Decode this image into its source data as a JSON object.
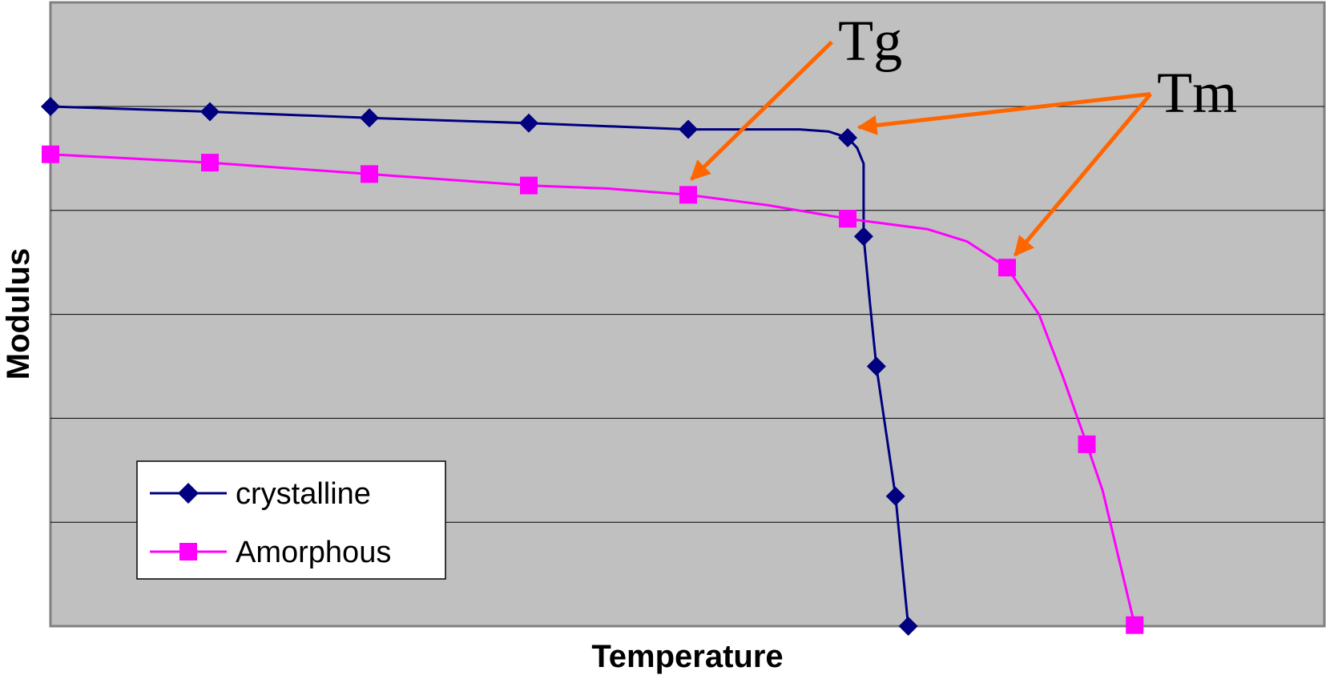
{
  "chart_data": {
    "type": "line",
    "title": "",
    "xlabel": "Temperature",
    "ylabel": "Modulus",
    "xlim": [
      0,
      8
    ],
    "ylim": [
      0,
      6
    ],
    "grid": "horizontal",
    "legend_placement": "bottom-left",
    "plot_background": "#c0c0c0",
    "series": [
      {
        "name": "crystalline",
        "color": "#000080",
        "marker": "diamond",
        "markers": [
          {
            "x": 0.0,
            "y": 5.0
          },
          {
            "x": 1.0,
            "y": 4.95
          },
          {
            "x": 2.0,
            "y": 4.89
          },
          {
            "x": 3.0,
            "y": 4.84
          },
          {
            "x": 4.0,
            "y": 4.78
          },
          {
            "x": 5.0,
            "y": 4.7
          },
          {
            "x": 5.1,
            "y": 3.75
          },
          {
            "x": 5.18,
            "y": 2.5
          },
          {
            "x": 5.3,
            "y": 1.25
          },
          {
            "x": 5.38,
            "y": 0.0
          }
        ],
        "curve": [
          {
            "x": 0.0,
            "y": 5.0
          },
          {
            "x": 1.0,
            "y": 4.95
          },
          {
            "x": 2.0,
            "y": 4.89
          },
          {
            "x": 3.0,
            "y": 4.84
          },
          {
            "x": 4.0,
            "y": 4.78
          },
          {
            "x": 4.7,
            "y": 4.78
          },
          {
            "x": 4.88,
            "y": 4.76
          },
          {
            "x": 5.0,
            "y": 4.7
          },
          {
            "x": 5.06,
            "y": 4.6
          },
          {
            "x": 5.1,
            "y": 4.45
          },
          {
            "x": 5.1,
            "y": 3.75
          },
          {
            "x": 5.14,
            "y": 3.1
          },
          {
            "x": 5.18,
            "y": 2.5
          },
          {
            "x": 5.3,
            "y": 1.25
          },
          {
            "x": 5.38,
            "y": 0.0
          }
        ]
      },
      {
        "name": "Amorphous",
        "color": "#ff00ff",
        "marker": "square",
        "markers": [
          {
            "x": 0.0,
            "y": 4.54
          },
          {
            "x": 1.0,
            "y": 4.46
          },
          {
            "x": 2.0,
            "y": 4.35
          },
          {
            "x": 3.0,
            "y": 4.24
          },
          {
            "x": 4.0,
            "y": 4.15
          },
          {
            "x": 5.0,
            "y": 3.92
          },
          {
            "x": 6.0,
            "y": 3.45
          },
          {
            "x": 6.5,
            "y": 1.75
          },
          {
            "x": 6.8,
            "y": 0.01
          }
        ],
        "curve": [
          {
            "x": 0.0,
            "y": 4.54
          },
          {
            "x": 1.0,
            "y": 4.46
          },
          {
            "x": 2.0,
            "y": 4.35
          },
          {
            "x": 3.0,
            "y": 4.24
          },
          {
            "x": 3.5,
            "y": 4.21
          },
          {
            "x": 4.0,
            "y": 4.15
          },
          {
            "x": 4.5,
            "y": 4.05
          },
          {
            "x": 5.0,
            "y": 3.92
          },
          {
            "x": 5.5,
            "y": 3.82
          },
          {
            "x": 5.75,
            "y": 3.7
          },
          {
            "x": 6.0,
            "y": 3.45
          },
          {
            "x": 6.2,
            "y": 3.0
          },
          {
            "x": 6.35,
            "y": 2.4
          },
          {
            "x": 6.5,
            "y": 1.75
          },
          {
            "x": 6.6,
            "y": 1.3
          },
          {
            "x": 6.8,
            "y": 0.01
          }
        ]
      }
    ],
    "annotations": [
      {
        "label": "Tg",
        "color": "#ff6600",
        "label_at": {
          "x": 4.9,
          "y": 5.62
        },
        "arrows_to": [
          {
            "x": 4.02,
            "y": 4.3
          }
        ]
      },
      {
        "label": "Tm",
        "color": "#ff6600",
        "label_at": {
          "x": 6.9,
          "y": 5.12
        },
        "arrows_to": [
          {
            "x": 5.07,
            "y": 4.8
          },
          {
            "x": 6.05,
            "y": 3.57
          }
        ]
      }
    ]
  }
}
